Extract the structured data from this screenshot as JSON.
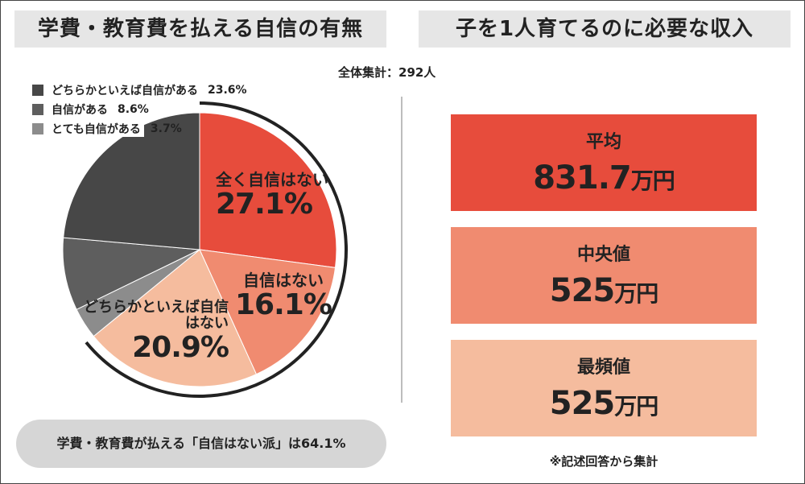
{
  "left_panel": {
    "title": "学費・教育費を払える自信の有無",
    "summary": "学費・教育費が払える「自信はない派」は64.1%"
  },
  "right_panel": {
    "title": "子を1人育てるのに必要な収入",
    "stats": [
      {
        "label": "平均",
        "value": "831.7",
        "unit": "万円",
        "color": "#e74c3c"
      },
      {
        "label": "中央値",
        "value": "525",
        "unit": "万円",
        "color": "#f08b70"
      },
      {
        "label": "最頻値",
        "value": "525",
        "unit": "万円",
        "color": "#f5bc9e"
      }
    ],
    "note": "※記述回答から集計"
  },
  "total_label": "全体集計：292人",
  "chart_data": {
    "type": "pie",
    "title": "学費・教育費を払える自信の有無",
    "slices": [
      {
        "label": "全く自信はない",
        "value": 27.1,
        "value_text": "27.1%",
        "color": "#e74c3c",
        "in_legend": false
      },
      {
        "label": "自信はない",
        "value": 16.1,
        "value_text": "16.1%",
        "color": "#f08b70",
        "in_legend": false
      },
      {
        "label": "どちらかといえば自信はない",
        "value": 20.9,
        "value_text": "20.9%",
        "color": "#f5bc9e",
        "in_legend": false
      },
      {
        "label": "とても自信がある",
        "value": 3.7,
        "value_text": "3.7%",
        "color": "#8c8c8c",
        "in_legend": true
      },
      {
        "label": "自信がある",
        "value": 8.6,
        "value_text": "8.6%",
        "color": "#5e5e5e",
        "in_legend": true
      },
      {
        "label": "どちらかといえば自信がある",
        "value": 23.6,
        "value_text": "23.6%",
        "color": "#474747",
        "in_legend": true
      }
    ],
    "legend_order": [
      "どちらかといえば自信がある",
      "自信がある",
      "とても自信がある"
    ],
    "highlight_group": {
      "label": "自信はない派",
      "value": 64.1
    }
  }
}
